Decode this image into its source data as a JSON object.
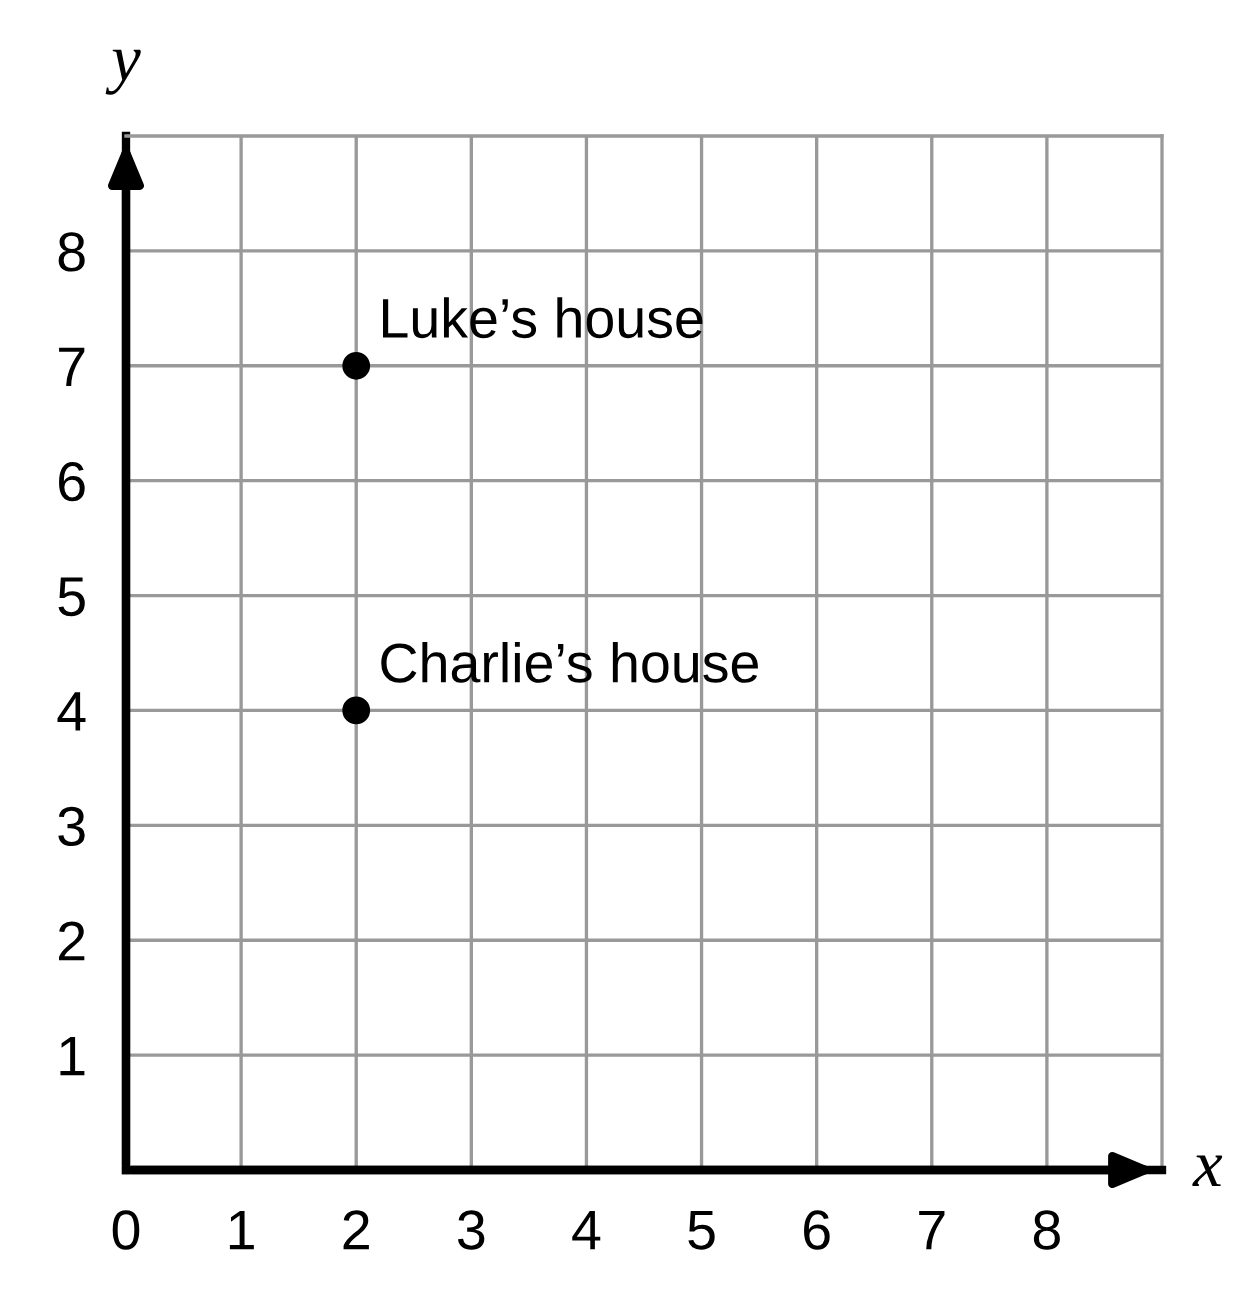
{
  "chart_data": {
    "type": "scatter",
    "xlabel": "x",
    "ylabel": "y",
    "x": [
      2,
      2
    ],
    "series": [
      {
        "color": "#000000",
        "values": [
          7,
          4
        ]
      }
    ],
    "xlim": [
      0,
      9
    ],
    "ylim": [
      0,
      9
    ],
    "xticks": [
      {
        "value": 0,
        "label": "0"
      },
      1,
      2,
      3,
      4,
      5,
      6,
      7,
      8
    ],
    "yticks": [
      1,
      2,
      3,
      4,
      5,
      6,
      7,
      8
    ],
    "grid": true,
    "marker": "circle",
    "legend": false,
    "annotations": [
      {
        "text": "Luke’s house",
        "x": 2,
        "y": 7
      },
      {
        "text": "Charlie’s house",
        "x": 2,
        "y": 4
      }
    ]
  }
}
